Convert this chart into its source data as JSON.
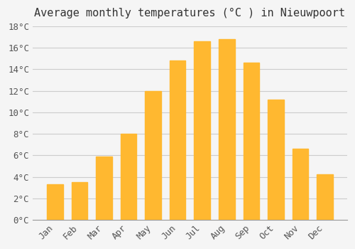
{
  "title": "Average monthly temperatures (°C ) in Nieuwpoort",
  "months": [
    "Jan",
    "Feb",
    "Mar",
    "Apr",
    "May",
    "Jun",
    "Jul",
    "Aug",
    "Sep",
    "Oct",
    "Nov",
    "Dec"
  ],
  "temperatures": [
    3.3,
    3.5,
    5.9,
    8.0,
    12.0,
    14.8,
    16.6,
    16.8,
    14.6,
    11.2,
    6.6,
    4.2
  ],
  "bar_color": "#FFA500",
  "bar_color_gradient_top": "#FFB830",
  "ylim": [
    0,
    18
  ],
  "yticks": [
    0,
    2,
    4,
    6,
    8,
    10,
    12,
    14,
    16,
    18
  ],
  "ytick_labels": [
    "0°C",
    "2°C",
    "4°C",
    "6°C",
    "8°C",
    "10°C",
    "12°C",
    "14°C",
    "16°C",
    "18°C"
  ],
  "background_color": "#F5F5F5",
  "grid_color": "#CCCCCC",
  "title_fontsize": 11,
  "tick_fontsize": 9,
  "title_font_family": "monospace",
  "tick_font_family": "monospace"
}
